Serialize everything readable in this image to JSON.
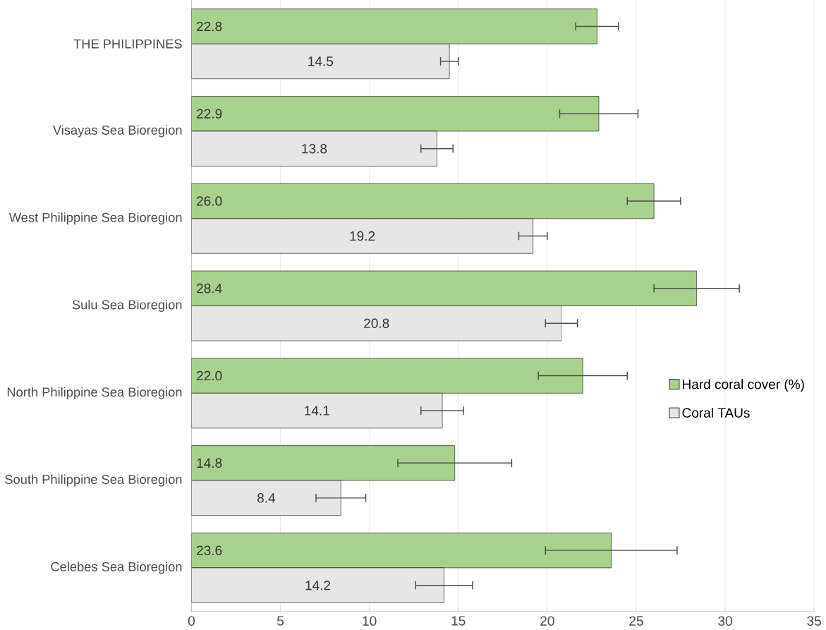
{
  "chart_data": {
    "type": "bar",
    "orientation": "horizontal",
    "categories": [
      "THE PHILIPPINES",
      "Visayas Sea Bioregion",
      "West Philippine Sea Bioregion",
      "Sulu Sea Bioregion",
      "North Philippine Sea Bioregion",
      "South Philippine Sea Bioregion",
      "Celebes Sea Bioregion"
    ],
    "series": [
      {
        "name": "Hard coral cover (%)",
        "color": "#a9d18e",
        "values": [
          22.8,
          22.9,
          26.0,
          28.4,
          22.0,
          14.8,
          23.6
        ],
        "value_labels": [
          "22.8",
          "22.9",
          "26.0",
          "28.4",
          "22.0",
          "14.8",
          "23.6"
        ],
        "errors": [
          1.2,
          2.2,
          1.5,
          2.4,
          2.5,
          3.2,
          3.7
        ]
      },
      {
        "name": "Coral TAUs",
        "color": "#e7e6e6",
        "values": [
          14.5,
          13.8,
          19.2,
          20.8,
          14.1,
          8.4,
          14.2
        ],
        "value_labels": [
          "14.5",
          "13.8",
          "19.2",
          "20.8",
          "14.1",
          "8.4",
          "14.2"
        ],
        "errors": [
          0.5,
          0.9,
          0.8,
          0.9,
          1.2,
          1.4,
          1.6
        ]
      }
    ],
    "xlim": [
      0,
      35
    ],
    "xticks": [
      0,
      5,
      10,
      15,
      20,
      25,
      30,
      35
    ],
    "grid": "x",
    "legend": "right"
  }
}
